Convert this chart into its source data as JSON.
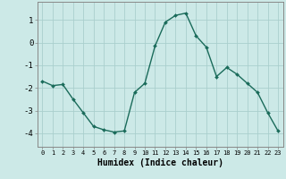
{
  "x": [
    0,
    1,
    2,
    3,
    4,
    5,
    6,
    7,
    8,
    9,
    10,
    11,
    12,
    13,
    14,
    15,
    16,
    17,
    18,
    19,
    20,
    21,
    22,
    23
  ],
  "y": [
    -1.7,
    -1.9,
    -1.85,
    -2.5,
    -3.1,
    -3.7,
    -3.85,
    -3.95,
    -3.9,
    -2.2,
    -1.8,
    -0.15,
    0.9,
    1.2,
    1.3,
    0.3,
    -0.2,
    -1.5,
    -1.1,
    -1.4,
    -1.8,
    -2.2,
    -3.1,
    -3.9
  ],
  "line_color": "#1a6b5a",
  "marker": "D",
  "markersize": 2.0,
  "bg_color": "#cce9e7",
  "grid_color": "#aacfcd",
  "xlabel": "Humidex (Indice chaleur)",
  "xlim": [
    -0.5,
    23.5
  ],
  "ylim": [
    -4.6,
    1.8
  ],
  "yticks": [
    -4,
    -3,
    -2,
    -1,
    0,
    1
  ],
  "xticks": [
    0,
    1,
    2,
    3,
    4,
    5,
    6,
    7,
    8,
    9,
    10,
    11,
    12,
    13,
    14,
    15,
    16,
    17,
    18,
    19,
    20,
    21,
    22,
    23
  ],
  "xtick_fontsize": 5.0,
  "ytick_fontsize": 6.5,
  "xlabel_fontsize": 7.0,
  "linewidth": 1.0
}
